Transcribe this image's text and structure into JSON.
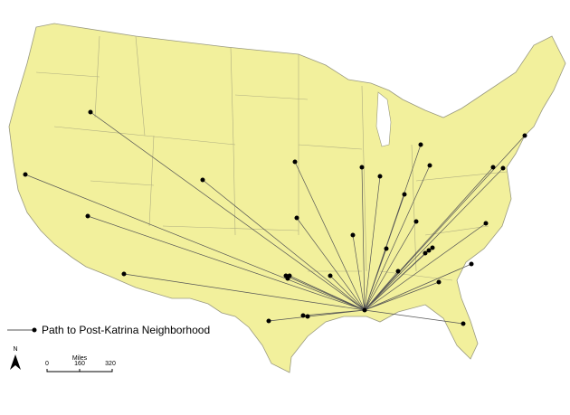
{
  "legend": {
    "label": "Path to Post-Katrina Neighborhood"
  },
  "north_arrow": {
    "label": "N"
  },
  "scale_bar": {
    "unit": "Miles",
    "ticks": [
      "0",
      "160",
      "320"
    ]
  }
}
